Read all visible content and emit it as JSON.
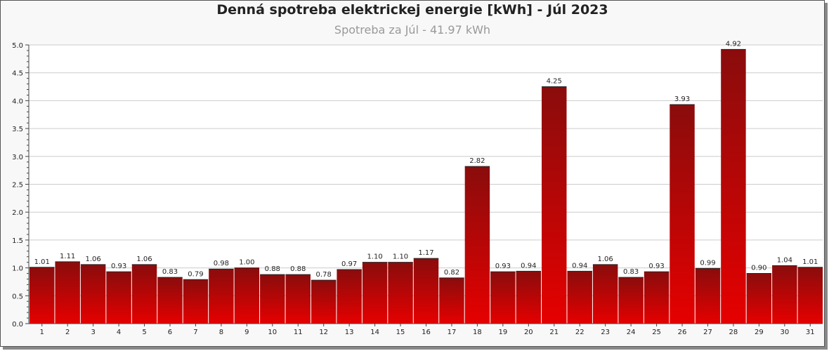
{
  "chart_data": {
    "type": "bar",
    "title": "Denná spotreba elektrickej energie [kWh] - Júl 2023",
    "subtitle": "Spotreba za Júl - 41.97 kWh",
    "categories": [
      "1",
      "2",
      "3",
      "4",
      "5",
      "6",
      "7",
      "8",
      "9",
      "10",
      "11",
      "12",
      "13",
      "14",
      "15",
      "16",
      "17",
      "18",
      "19",
      "20",
      "21",
      "22",
      "23",
      "24",
      "25",
      "26",
      "27",
      "28",
      "29",
      "30",
      "31"
    ],
    "values": [
      1.01,
      1.11,
      1.06,
      0.93,
      1.06,
      0.83,
      0.79,
      0.98,
      1.0,
      0.88,
      0.88,
      0.78,
      0.97,
      1.1,
      1.1,
      1.17,
      0.82,
      2.82,
      0.93,
      0.94,
      4.25,
      0.94,
      1.06,
      0.83,
      0.93,
      3.93,
      0.99,
      4.92,
      0.9,
      1.04,
      1.01
    ],
    "value_labels": [
      "1.01",
      "1.11",
      "1.06",
      "0.93",
      "1.06",
      "0.83",
      "0.79",
      "0.98",
      "1.00",
      "0.88",
      "0.88",
      "0.78",
      "0.97",
      "1.10",
      "1.10",
      "1.17",
      "0.82",
      "2.82",
      "0.93",
      "0.94",
      "4.25",
      "0.94",
      "1.06",
      "0.83",
      "0.93",
      "3.93",
      "0.99",
      "4.92",
      "0.90",
      "1.04",
      "1.01"
    ],
    "yticks": [
      "0.0",
      "0.5",
      "1.0",
      "1.5",
      "2.0",
      "2.5",
      "3.0",
      "3.5",
      "4.0",
      "4.5",
      "5.0"
    ],
    "ylim": [
      0,
      5.0
    ],
    "xlabel": "",
    "ylabel": "",
    "grid": true,
    "colors": {
      "bar_top": "#8a0c0c",
      "bar_bottom": "#e60000",
      "grid": "#cccccc"
    }
  }
}
